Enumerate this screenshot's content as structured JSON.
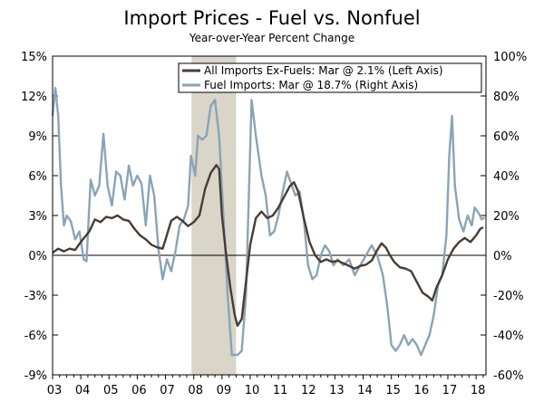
{
  "chart_data": {
    "type": "line",
    "title": "Import Prices - Fuel vs. Nonfuel",
    "subtitle": "Year-over-Year Percent Change",
    "x_ticks": [
      "03",
      "04",
      "05",
      "06",
      "07",
      "08",
      "09",
      "10",
      "11",
      "12",
      "13",
      "14",
      "15",
      "16",
      "17",
      "18"
    ],
    "x_range": [
      2003.0,
      2018.35
    ],
    "left_axis": {
      "ylim": [
        -9,
        15
      ],
      "ticks": [
        "15%",
        "12%",
        "9%",
        "6%",
        "3%",
        "0%",
        "-3%",
        "-6%",
        "-9%"
      ]
    },
    "right_axis": {
      "ylim": [
        -60,
        100
      ],
      "ticks": [
        "100%",
        "80%",
        "60%",
        "40%",
        "20%",
        "0%",
        "-20%",
        "-40%",
        "-60%"
      ]
    },
    "recession_shade": {
      "start": 2007.92,
      "end": 2009.5,
      "color": "#d9d5c8"
    },
    "colors": {
      "nonfuel": "#4a3b33",
      "fuel": "#8aa4b6",
      "zero_line": "#000000",
      "frame": "#000000"
    },
    "series": [
      {
        "name": "All Imports Ex-Fuels: Mar @ 2.1% (Left Axis)",
        "axis": "left",
        "points": [
          [
            2003.0,
            0.2
          ],
          [
            2003.2,
            0.5
          ],
          [
            2003.4,
            0.3
          ],
          [
            2003.6,
            0.5
          ],
          [
            2003.8,
            0.4
          ],
          [
            2004.0,
            1.0
          ],
          [
            2004.3,
            1.8
          ],
          [
            2004.5,
            2.7
          ],
          [
            2004.7,
            2.5
          ],
          [
            2004.9,
            2.9
          ],
          [
            2005.1,
            2.8
          ],
          [
            2005.3,
            3.0
          ],
          [
            2005.5,
            2.7
          ],
          [
            2005.7,
            2.6
          ],
          [
            2005.9,
            2.0
          ],
          [
            2006.1,
            1.5
          ],
          [
            2006.3,
            1.2
          ],
          [
            2006.5,
            0.8
          ],
          [
            2006.7,
            0.6
          ],
          [
            2006.9,
            0.5
          ],
          [
            2007.0,
            1.2
          ],
          [
            2007.2,
            2.6
          ],
          [
            2007.4,
            2.9
          ],
          [
            2007.6,
            2.6
          ],
          [
            2007.8,
            2.2
          ],
          [
            2008.0,
            2.5
          ],
          [
            2008.2,
            3.0
          ],
          [
            2008.4,
            5.0
          ],
          [
            2008.6,
            6.2
          ],
          [
            2008.8,
            6.8
          ],
          [
            2008.9,
            6.5
          ],
          [
            2009.0,
            3.0
          ],
          [
            2009.15,
            0.0
          ],
          [
            2009.3,
            -2.5
          ],
          [
            2009.45,
            -4.5
          ],
          [
            2009.55,
            -5.3
          ],
          [
            2009.7,
            -4.8
          ],
          [
            2009.85,
            -2.0
          ],
          [
            2010.0,
            0.8
          ],
          [
            2010.2,
            2.8
          ],
          [
            2010.4,
            3.3
          ],
          [
            2010.6,
            2.8
          ],
          [
            2010.8,
            3.0
          ],
          [
            2011.0,
            3.6
          ],
          [
            2011.2,
            4.4
          ],
          [
            2011.4,
            5.2
          ],
          [
            2011.55,
            5.5
          ],
          [
            2011.7,
            4.8
          ],
          [
            2011.9,
            2.8
          ],
          [
            2012.1,
            1.0
          ],
          [
            2012.3,
            0.0
          ],
          [
            2012.5,
            -0.5
          ],
          [
            2012.7,
            -0.3
          ],
          [
            2012.9,
            -0.5
          ],
          [
            2013.1,
            -0.4
          ],
          [
            2013.3,
            -0.6
          ],
          [
            2013.5,
            -0.8
          ],
          [
            2013.7,
            -1.0
          ],
          [
            2013.9,
            -0.8
          ],
          [
            2014.1,
            -0.7
          ],
          [
            2014.3,
            -0.4
          ],
          [
            2014.5,
            0.4
          ],
          [
            2014.65,
            0.9
          ],
          [
            2014.8,
            0.6
          ],
          [
            2014.95,
            0.0
          ],
          [
            2015.1,
            -0.5
          ],
          [
            2015.3,
            -0.9
          ],
          [
            2015.5,
            -1.0
          ],
          [
            2015.7,
            -1.2
          ],
          [
            2015.9,
            -2.0
          ],
          [
            2016.1,
            -2.8
          ],
          [
            2016.3,
            -3.1
          ],
          [
            2016.45,
            -3.4
          ],
          [
            2016.6,
            -2.4
          ],
          [
            2016.8,
            -1.5
          ],
          [
            2017.0,
            -0.3
          ],
          [
            2017.2,
            0.5
          ],
          [
            2017.4,
            1.0
          ],
          [
            2017.6,
            1.3
          ],
          [
            2017.8,
            1.0
          ],
          [
            2018.0,
            1.5
          ],
          [
            2018.15,
            2.0
          ],
          [
            2018.25,
            2.1
          ]
        ]
      },
      {
        "name": "Fuel Imports: Mar @ 18.7% (Right Axis)",
        "axis": "right",
        "points": [
          [
            2003.0,
            70
          ],
          [
            2003.1,
            84
          ],
          [
            2003.2,
            70
          ],
          [
            2003.3,
            35
          ],
          [
            2003.4,
            15
          ],
          [
            2003.5,
            20
          ],
          [
            2003.65,
            17
          ],
          [
            2003.8,
            8
          ],
          [
            2003.95,
            12
          ],
          [
            2004.1,
            -2
          ],
          [
            2004.2,
            -3
          ],
          [
            2004.35,
            38
          ],
          [
            2004.5,
            30
          ],
          [
            2004.65,
            35
          ],
          [
            2004.8,
            61
          ],
          [
            2004.95,
            35
          ],
          [
            2005.1,
            25
          ],
          [
            2005.25,
            42
          ],
          [
            2005.4,
            40
          ],
          [
            2005.55,
            28
          ],
          [
            2005.7,
            45
          ],
          [
            2005.85,
            35
          ],
          [
            2006.0,
            40
          ],
          [
            2006.15,
            36
          ],
          [
            2006.3,
            15
          ],
          [
            2006.45,
            40
          ],
          [
            2006.6,
            30
          ],
          [
            2006.75,
            3
          ],
          [
            2006.9,
            -12
          ],
          [
            2007.05,
            -2
          ],
          [
            2007.2,
            -8
          ],
          [
            2007.35,
            2
          ],
          [
            2007.5,
            15
          ],
          [
            2007.65,
            18
          ],
          [
            2007.8,
            25
          ],
          [
            2007.9,
            50
          ],
          [
            2008.05,
            40
          ],
          [
            2008.15,
            60
          ],
          [
            2008.3,
            58
          ],
          [
            2008.45,
            60
          ],
          [
            2008.6,
            75
          ],
          [
            2008.75,
            78
          ],
          [
            2008.9,
            60
          ],
          [
            2009.05,
            20
          ],
          [
            2009.2,
            -20
          ],
          [
            2009.35,
            -50
          ],
          [
            2009.55,
            -50
          ],
          [
            2009.7,
            -48
          ],
          [
            2009.85,
            -20
          ],
          [
            2010.05,
            78
          ],
          [
            2010.2,
            60
          ],
          [
            2010.4,
            40
          ],
          [
            2010.55,
            30
          ],
          [
            2010.7,
            10
          ],
          [
            2010.85,
            12
          ],
          [
            2011.0,
            20
          ],
          [
            2011.15,
            32
          ],
          [
            2011.3,
            42
          ],
          [
            2011.45,
            36
          ],
          [
            2011.6,
            30
          ],
          [
            2011.75,
            32
          ],
          [
            2011.9,
            18
          ],
          [
            2012.05,
            -5
          ],
          [
            2012.2,
            -12
          ],
          [
            2012.35,
            -10
          ],
          [
            2012.5,
            0
          ],
          [
            2012.65,
            5
          ],
          [
            2012.8,
            2
          ],
          [
            2012.95,
            -5
          ],
          [
            2013.1,
            -2
          ],
          [
            2013.3,
            -5
          ],
          [
            2013.5,
            -2
          ],
          [
            2013.7,
            -10
          ],
          [
            2013.9,
            -5
          ],
          [
            2014.1,
            0
          ],
          [
            2014.3,
            5
          ],
          [
            2014.5,
            0
          ],
          [
            2014.7,
            -10
          ],
          [
            2014.85,
            -25
          ],
          [
            2015.0,
            -45
          ],
          [
            2015.15,
            -48
          ],
          [
            2015.3,
            -45
          ],
          [
            2015.45,
            -40
          ],
          [
            2015.6,
            -45
          ],
          [
            2015.75,
            -42
          ],
          [
            2015.9,
            -45
          ],
          [
            2016.05,
            -50
          ],
          [
            2016.2,
            -45
          ],
          [
            2016.35,
            -40
          ],
          [
            2016.5,
            -30
          ],
          [
            2016.65,
            -15
          ],
          [
            2016.8,
            -10
          ],
          [
            2016.95,
            10
          ],
          [
            2017.05,
            50
          ],
          [
            2017.15,
            70
          ],
          [
            2017.25,
            35
          ],
          [
            2017.4,
            18
          ],
          [
            2017.55,
            12
          ],
          [
            2017.7,
            20
          ],
          [
            2017.85,
            15
          ],
          [
            2017.95,
            24
          ],
          [
            2018.1,
            21
          ],
          [
            2018.2,
            18
          ],
          [
            2018.3,
            19
          ]
        ]
      }
    ]
  }
}
